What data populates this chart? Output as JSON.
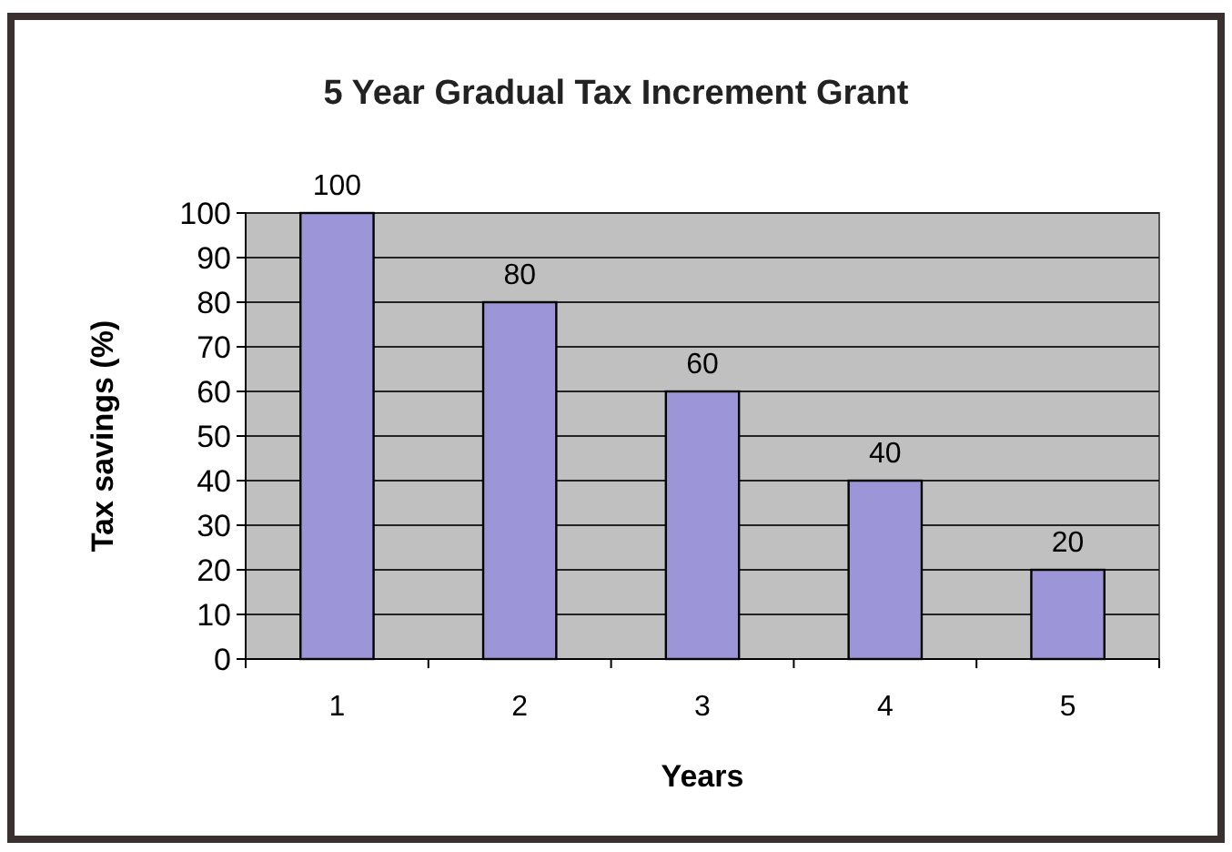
{
  "chart_data": {
    "type": "bar",
    "title": "5 Year Gradual Tax Increment Grant",
    "xlabel": "Years",
    "ylabel": "Tax savings (%)",
    "categories": [
      "1",
      "2",
      "3",
      "4",
      "5"
    ],
    "values": [
      100,
      80,
      60,
      40,
      20
    ],
    "color": "#9c96d8",
    "ylim": [
      0,
      100
    ],
    "yticks": [
      0,
      10,
      20,
      30,
      40,
      50,
      60,
      70,
      80,
      90,
      100
    ],
    "grid": "y",
    "data_labels": true
  }
}
